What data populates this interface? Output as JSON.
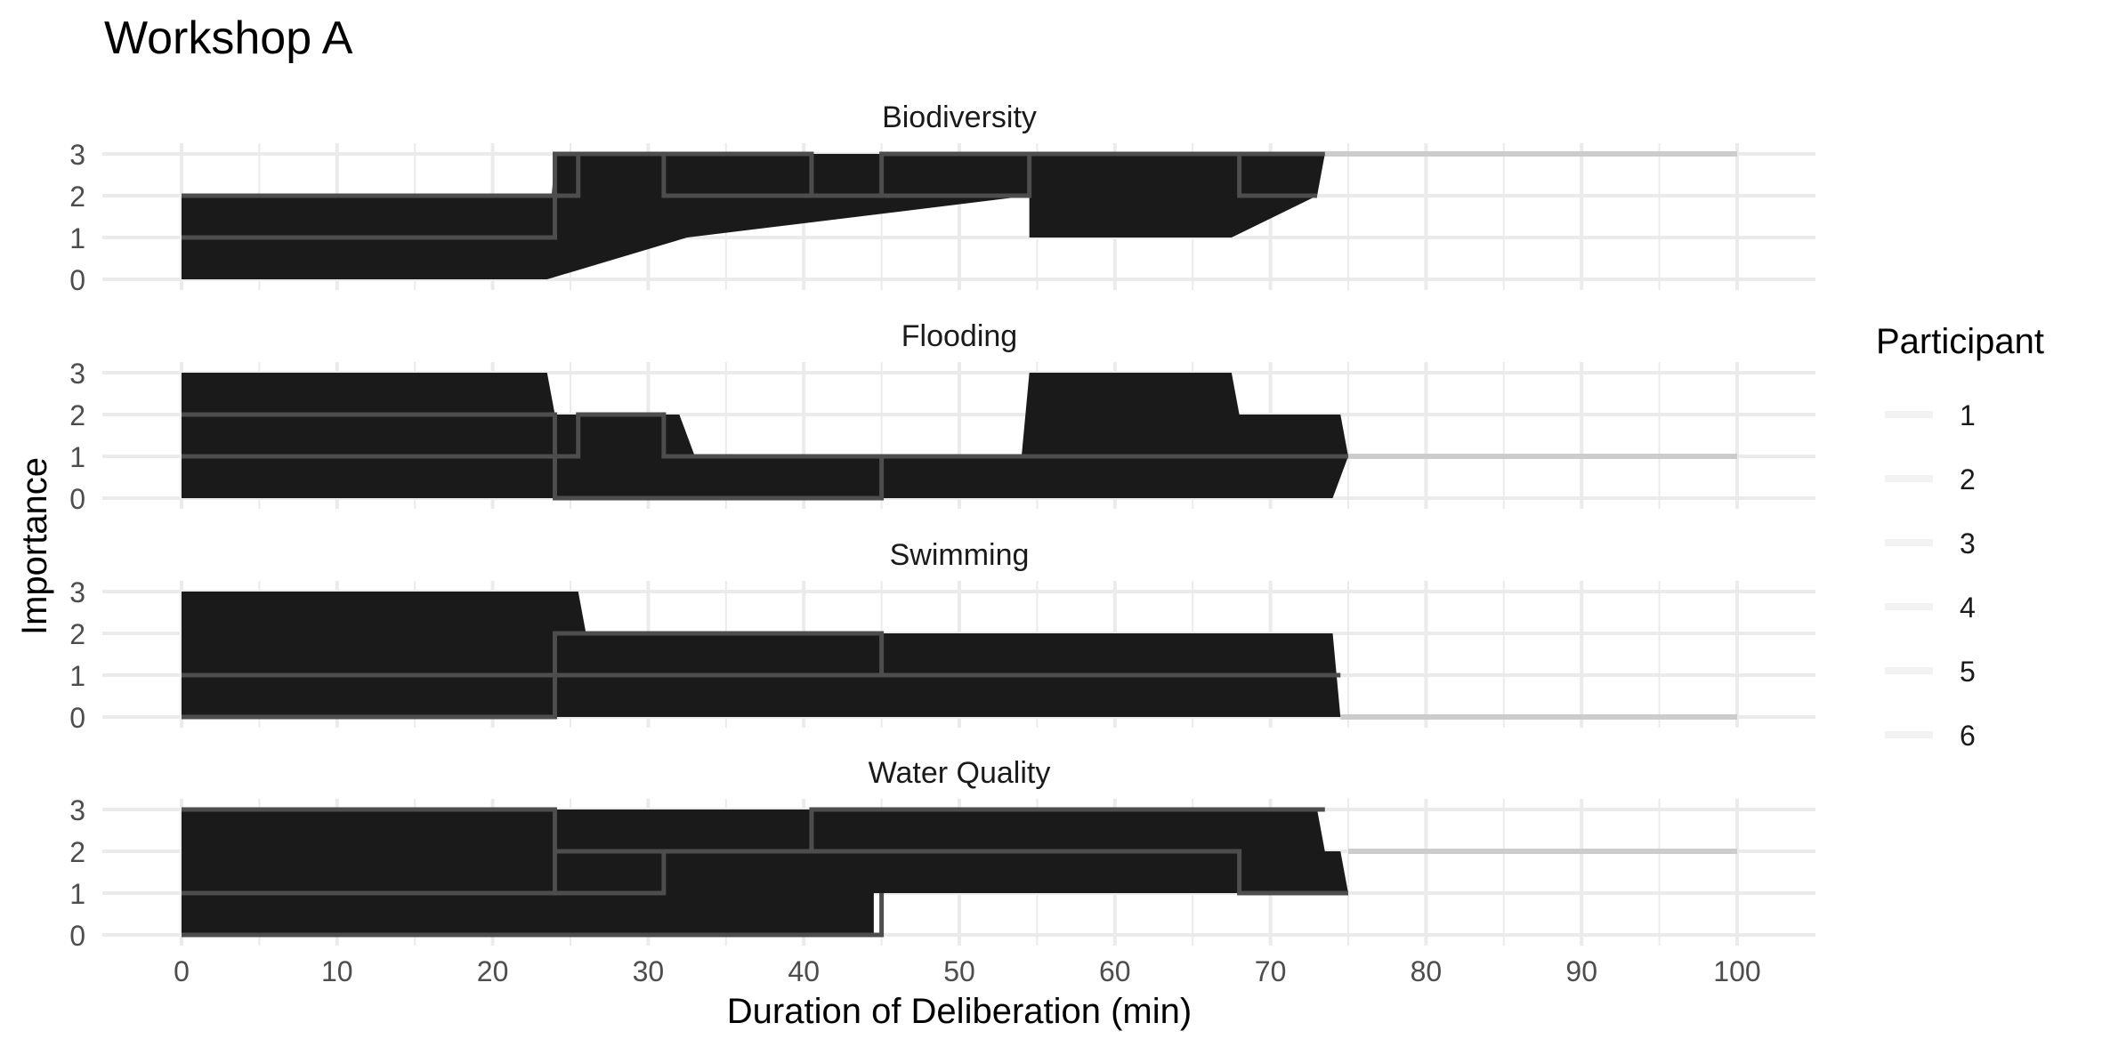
{
  "chart_data": {
    "type": "area",
    "title": "Workshop A",
    "xlabel": "Duration of Deliberation (min)",
    "ylabel": "Importance",
    "xlim": [
      0,
      100
    ],
    "ylim": [
      0,
      3
    ],
    "x_ticks": [
      "0",
      "10",
      "20",
      "30",
      "40",
      "50",
      "60",
      "70",
      "80",
      "90",
      "100"
    ],
    "y_ticks": [
      "0",
      "1",
      "2",
      "3"
    ],
    "grid": true,
    "legend": {
      "title": "Participant",
      "position": "right",
      "entries": [
        "1",
        "2",
        "3",
        "4",
        "5",
        "6"
      ]
    },
    "colors": {
      "fill": "#1a1a1a",
      "line": "#4d4d4d",
      "tail": "#cccccc",
      "grid": "#ebebeb",
      "legend_key": "#f2f2f2"
    },
    "panels": [
      {
        "name": "Biodiversity",
        "outline": [
          [
            0,
            2
          ],
          [
            23.8,
            2
          ],
          [
            24,
            3
          ],
          [
            73.5,
            3
          ],
          [
            73,
            2
          ],
          [
            67.5,
            1
          ],
          [
            54.5,
            1
          ],
          [
            54.5,
            2
          ],
          [
            32.5,
            1
          ],
          [
            23.5,
            0
          ],
          [
            0,
            0
          ]
        ],
        "lines": [
          [
            [
              0,
              1
            ],
            [
              24,
              1
            ],
            [
              24,
              3
            ],
            [
              40.5,
              3
            ],
            [
              40.5,
              2
            ],
            [
              54.5,
              2
            ],
            [
              54.5,
              3
            ],
            [
              68,
              3
            ],
            [
              68,
              2
            ],
            [
              73,
              2
            ]
          ],
          [
            [
              0,
              2
            ],
            [
              24,
              2
            ],
            [
              25.5,
              2
            ],
            [
              25.5,
              3
            ],
            [
              31,
              3
            ],
            [
              31,
              2
            ],
            [
              45,
              2
            ],
            [
              45,
              3
            ],
            [
              73.5,
              3
            ]
          ]
        ],
        "tail": [
          [
            73.5,
            3
          ],
          [
            100,
            3
          ]
        ]
      },
      {
        "name": "Flooding",
        "outline": [
          [
            0,
            3
          ],
          [
            23.5,
            3
          ],
          [
            24,
            2
          ],
          [
            32,
            2
          ],
          [
            33,
            1
          ],
          [
            54,
            1
          ],
          [
            54.5,
            3
          ],
          [
            67.5,
            3
          ],
          [
            68,
            2
          ],
          [
            74.5,
            2
          ],
          [
            75,
            1
          ],
          [
            74,
            0
          ],
          [
            0,
            0
          ]
        ],
        "lines": [
          [
            [
              0,
              2
            ],
            [
              24,
              2
            ],
            [
              24,
              0
            ],
            [
              45,
              0
            ],
            [
              45,
              1
            ],
            [
              74,
              1
            ]
          ],
          [
            [
              0,
              1
            ],
            [
              25.5,
              1
            ],
            [
              25.5,
              2
            ],
            [
              31,
              2
            ],
            [
              31,
              1
            ],
            [
              75,
              1
            ]
          ]
        ],
        "tail": [
          [
            75,
            1
          ],
          [
            100,
            1
          ]
        ]
      },
      {
        "name": "Swimming",
        "outline": [
          [
            0,
            3
          ],
          [
            25.5,
            3
          ],
          [
            26,
            2
          ],
          [
            74,
            2
          ],
          [
            74.5,
            0
          ],
          [
            0,
            0
          ]
        ],
        "lines": [
          [
            [
              0,
              1
            ],
            [
              24,
              1
            ],
            [
              24,
              2
            ],
            [
              45,
              2
            ],
            [
              45,
              1
            ],
            [
              74,
              1
            ]
          ],
          [
            [
              0,
              0
            ],
            [
              24,
              0
            ],
            [
              24,
              1
            ],
            [
              74.5,
              1
            ]
          ]
        ],
        "tail": [
          [
            74.5,
            0
          ],
          [
            100,
            0
          ]
        ]
      },
      {
        "name": "Water Quality",
        "outline": [
          [
            0,
            3
          ],
          [
            73,
            3
          ],
          [
            73.5,
            2
          ],
          [
            74.5,
            2
          ],
          [
            75,
            1
          ],
          [
            44.5,
            1
          ],
          [
            44.5,
            0
          ],
          [
            0,
            0
          ]
        ],
        "lines": [
          [
            [
              0,
              3
            ],
            [
              24,
              3
            ],
            [
              24,
              1
            ],
            [
              31,
              1
            ],
            [
              31,
              2
            ],
            [
              40.5,
              2
            ],
            [
              40.5,
              3
            ],
            [
              73.5,
              3
            ]
          ],
          [
            [
              0,
              1
            ],
            [
              24,
              1
            ],
            [
              24,
              2
            ],
            [
              68,
              2
            ],
            [
              68,
              1
            ],
            [
              75,
              1
            ]
          ],
          [
            [
              0,
              0
            ],
            [
              45,
              0
            ],
            [
              45,
              1
            ]
          ]
        ],
        "tail": [
          [
            75,
            2
          ],
          [
            100,
            2
          ]
        ]
      }
    ]
  }
}
